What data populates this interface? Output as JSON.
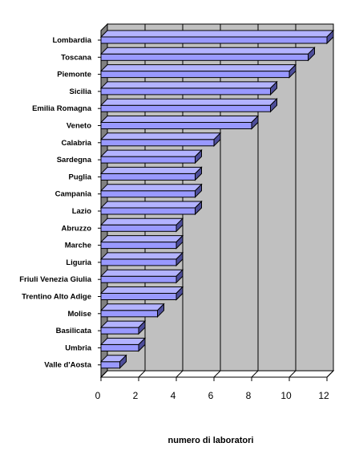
{
  "chart_data": {
    "type": "bar",
    "orientation": "horizontal",
    "three_d": true,
    "categories": [
      "Lombardia",
      "Toscana",
      "Piemonte",
      "Sicilia",
      "Emilia Romagna",
      "Veneto",
      "Calabria",
      "Sardegna",
      "Puglia",
      "Campania",
      "Lazio",
      "Abruzzo",
      "Marche",
      "Liguria",
      "Friuli Venezia Giulia",
      "Trentino Alto Adige",
      "Molise",
      "Basilicata",
      "Umbria",
      "Valle d'Aosta"
    ],
    "values": [
      12,
      11,
      10,
      9,
      9,
      8,
      6,
      5,
      5,
      5,
      5,
      4,
      4,
      4,
      4,
      4,
      3,
      2,
      2,
      1
    ],
    "title": "",
    "xlabel": "numero di laboratori",
    "ylabel": "",
    "xlim": [
      0,
      12
    ],
    "xticks": [
      0,
      2,
      4,
      6,
      8,
      10,
      12
    ],
    "grid": true,
    "legend": "none",
    "colors": {
      "bar_front": "#9999ff",
      "bar_top": "#b3b3ff",
      "bar_side": "#4d4d99",
      "wall": "#c0c0c0",
      "floor": "#ffffff",
      "side_wall": "#808080",
      "gridline": "#000000"
    }
  }
}
